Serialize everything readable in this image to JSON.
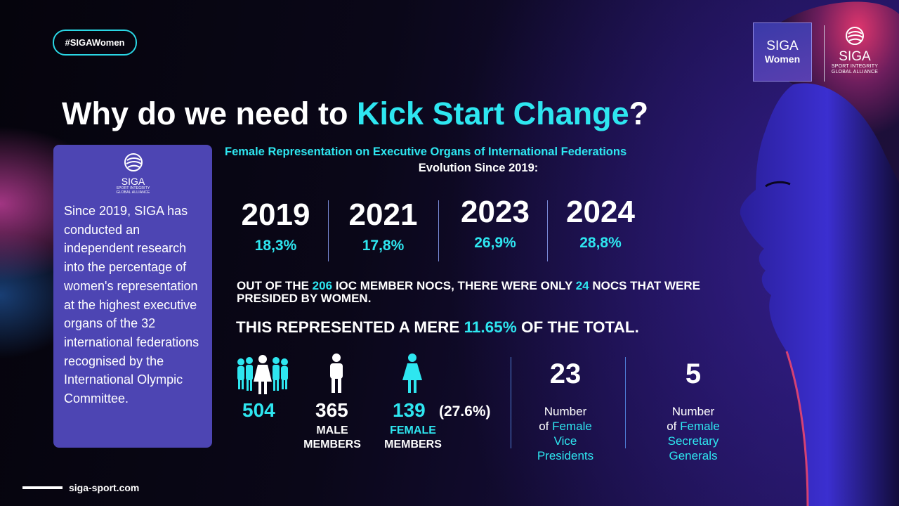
{
  "hashtag": "#SIGAWomen",
  "logos": {
    "women_top": "SIGA",
    "women_bottom": "Women",
    "siga_name": "SIGA",
    "siga_tagline_1": "SPORT INTEGRITY",
    "siga_tagline_2": "GLOBAL ALLIANCE"
  },
  "headline": {
    "prefix": "Why do we need to ",
    "accent": "Kick Start Change",
    "suffix": "?"
  },
  "sidebar": {
    "logo_name": "SIGA",
    "logo_tagline_1": "SPORT INTEGRITY",
    "logo_tagline_2": "GLOBAL ALLIANCE",
    "text": "Since 2019, SIGA has conducted an independent research into the percentage of women's representation at the highest executive organs of the 32 international federations recognised by the International Olympic Committee."
  },
  "section": {
    "title": "Female Representation on Executive Organs of International Federations",
    "subtitle": "Evolution Since 2019:"
  },
  "evolution": [
    {
      "year": "2019",
      "percent": "18,3%"
    },
    {
      "year": "2021",
      "percent": "17,8%"
    },
    {
      "year": "2023",
      "percent": "26,9%"
    },
    {
      "year": "2024",
      "percent": "28,8%"
    }
  ],
  "nocs": {
    "part1": "OUT OF THE ",
    "total": "206",
    "part2": " IOC MEMBER NOCS, THERE WERE ONLY ",
    "women": "24",
    "part3": " NOCS THAT WERE PRESIDED BY WOMEN.",
    "total_prefix": "THIS REPRESENTED A MERE ",
    "total_pct": "11.65%",
    "total_suffix": " OF THE TOTAL."
  },
  "members": {
    "total": "504",
    "male": "365",
    "male_label_1": "MALE",
    "male_label_2": "MEMBERS",
    "female": "139",
    "female_pct": "(27.6%)",
    "female_label_1": "FEMALE",
    "female_label_2": "MEMBERS"
  },
  "counts": [
    {
      "value": "23",
      "line1": "Number",
      "line2_prefix": "of ",
      "line2_accent": "Female",
      "line3": "Vice",
      "line4": "Presidents"
    },
    {
      "value": "5",
      "line1": "Number",
      "line2_prefix": "of ",
      "line2_accent": "Female",
      "line3": "Secretary",
      "line4": "Generals"
    }
  ],
  "footer": {
    "url": "siga-sport.com"
  },
  "colors": {
    "accent": "#2ee6f0",
    "card": "#4d45b3",
    "background": "#0a0718"
  }
}
